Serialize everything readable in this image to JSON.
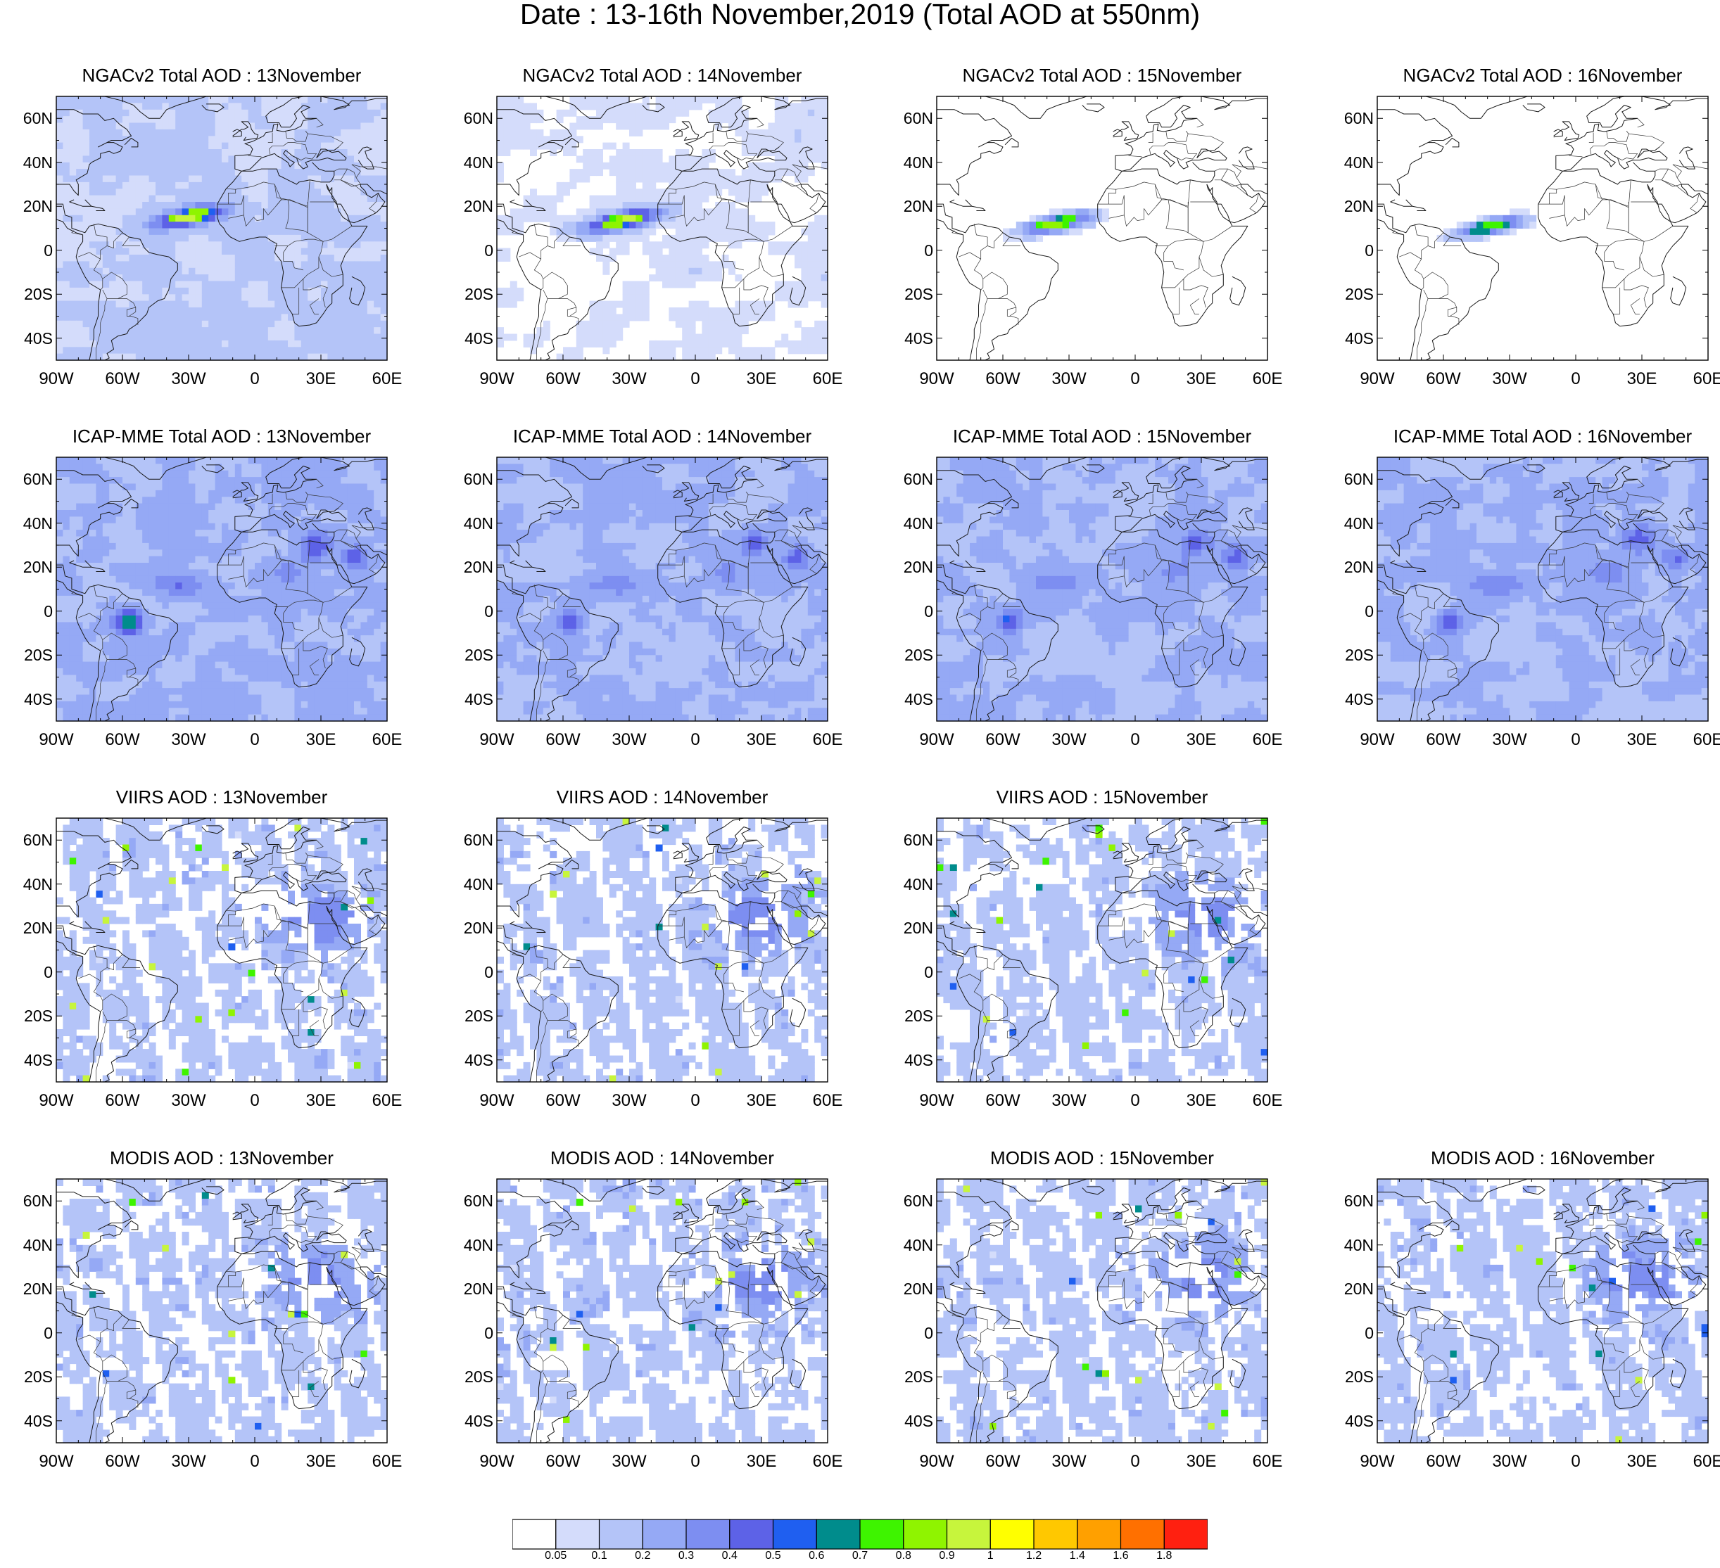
{
  "title": "Date : 13-16th November,2019 (Total AOD at 550nm)",
  "lat_labels": [
    "60N",
    "40N",
    "20N",
    "0",
    "20S",
    "40S"
  ],
  "lon_labels": [
    "90W",
    "60W",
    "30W",
    "0",
    "30E",
    "60E"
  ],
  "map_extent": {
    "lon": [
      -90,
      60
    ],
    "lat": [
      -50,
      70
    ]
  },
  "product_rows": [
    {
      "product": "NGACv2",
      "panels": [
        {
          "title": "NGACv2 Total AOD : 13November",
          "plume_max": "0.7-0.8"
        },
        {
          "title": "NGACv2 Total AOD : 14November",
          "plume_max": "0.7-0.8"
        },
        {
          "title": "NGACv2 Total AOD : 15November",
          "plume_max": "0.7-0.8"
        },
        {
          "title": "NGACv2 Total AOD : 16November",
          "plume_max": "0.6-0.7"
        }
      ]
    },
    {
      "product": "ICAP-MME",
      "panels": [
        {
          "title": "ICAP-MME Total AOD : 13November"
        },
        {
          "title": "ICAP-MME Total AOD : 14November"
        },
        {
          "title": "ICAP-MME Total AOD : 15November"
        },
        {
          "title": "ICAP-MME Total AOD : 16November"
        }
      ]
    },
    {
      "product": "VIIRS",
      "panels": [
        {
          "title": "VIIRS AOD : 13November"
        },
        {
          "title": "VIIRS AOD : 14November"
        },
        {
          "title": "VIIRS AOD : 15November"
        }
      ]
    },
    {
      "product": "MODIS",
      "panels": [
        {
          "title": "MODIS AOD : 13November"
        },
        {
          "title": "MODIS AOD : 14November"
        },
        {
          "title": "MODIS AOD : 15November"
        },
        {
          "title": "MODIS AOD : 16November"
        }
      ]
    }
  ],
  "colorbar": {
    "labels": [
      "0.05",
      "0.1",
      "0.2",
      "0.3",
      "0.4",
      "0.5",
      "0.6",
      "0.7",
      "0.8",
      "0.9",
      "1",
      "1.2",
      "1.4",
      "1.6",
      "1.8"
    ],
    "colors": [
      "#ffffff",
      "#d4dcfb",
      "#b4c4f8",
      "#95a9f5",
      "#7d8ef1",
      "#5d62e7",
      "#1f5ff0",
      "#008c8c",
      "#3ef400",
      "#8ff400",
      "#c7f53c",
      "#ffff00",
      "#ffc800",
      "#ffa000",
      "#ff7000",
      "#ff2010"
    ]
  }
}
